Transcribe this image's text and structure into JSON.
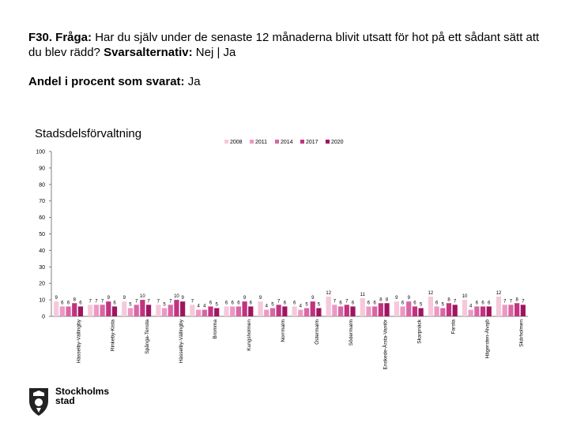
{
  "header": {
    "question_code": "F30. Fråga:",
    "question_text": " Har du själv under de senaste 12 månaderna blivit utsatt för hot på ett sådant sätt att du blev rädd? ",
    "answer_prefix": "Svarsalternativ:",
    "answer_text": " Nej | Ja",
    "subtitle_label": "Andel i procent som svarat:",
    "subtitle_value": " Ja"
  },
  "chart_data": {
    "type": "bar",
    "title": "Stadsdelsförvaltning",
    "ylim": [
      0,
      100
    ],
    "yticks": [
      0,
      10,
      20,
      30,
      40,
      50,
      60,
      70,
      80,
      90,
      100
    ],
    "legend_position": "top-right",
    "categories": [
      "Hässelby-Vällingby",
      "Rinkeby-Kista",
      "Spånga-Tensta",
      "Hässelby-Vällingby",
      "Bromma",
      "Kungsholmen",
      "Norrmalm",
      "Östermalm",
      "Södermalm",
      "Enskede-Årsta-Vantör",
      "Skarpnäck",
      "Farsta",
      "Hägersten-Älvsjö",
      "Skärholmen"
    ],
    "series": [
      {
        "name": "2008",
        "color": "#f6c8dc",
        "values": [
          9,
          7,
          9,
          7,
          7,
          6,
          9,
          6,
          12,
          11,
          9,
          12,
          10,
          12
        ]
      },
      {
        "name": "2011",
        "color": "#eb99c2",
        "values": [
          6,
          7,
          5,
          5,
          4,
          6,
          4,
          4,
          7,
          6,
          6,
          6,
          4,
          7
        ]
      },
      {
        "name": "2014",
        "color": "#d966a3",
        "values": [
          6,
          7,
          7,
          7,
          4,
          6,
          5,
          5,
          6,
          6,
          9,
          5,
          6,
          7
        ]
      },
      {
        "name": "2017",
        "color": "#c2337f",
        "values": [
          8,
          9,
          10,
          10,
          6,
          9,
          7,
          9,
          7,
          8,
          6,
          8,
          6,
          8
        ]
      },
      {
        "name": "2020",
        "color": "#9e1560",
        "values": [
          6,
          6,
          7,
          9,
          5,
          6,
          6,
          5,
          6,
          8,
          5,
          7,
          6,
          7
        ]
      }
    ]
  },
  "logo": {
    "line1": "Stockholms",
    "line2": "stad"
  },
  "colors": {
    "axis": "#7f7f7f",
    "gridline": "#e0e0e0"
  }
}
